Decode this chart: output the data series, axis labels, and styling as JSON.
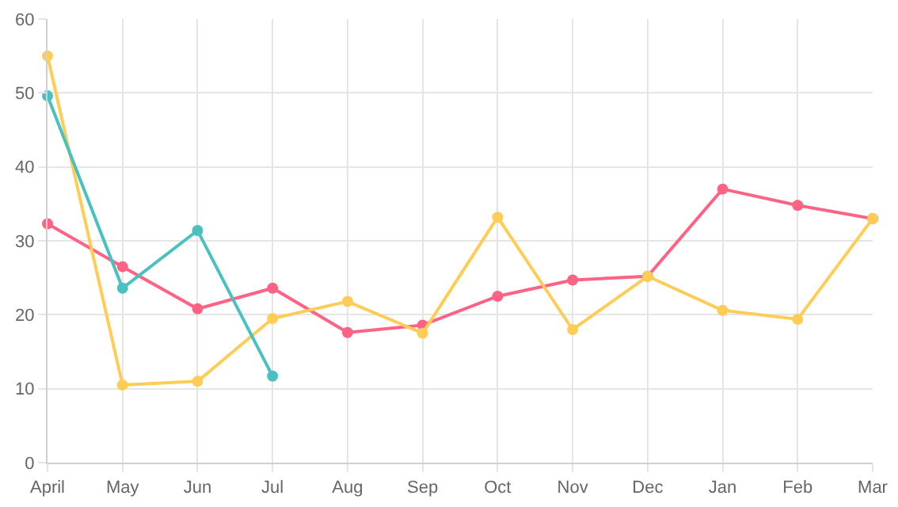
{
  "chart_data": {
    "type": "line",
    "categories": [
      "April",
      "May",
      "Jun",
      "Jul",
      "Aug",
      "Sep",
      "Oct",
      "Nov",
      "Dec",
      "Jan",
      "Feb",
      "Mar"
    ],
    "series": [
      {
        "color": "#ff6384",
        "values": [
          32.3,
          26.5,
          20.8,
          23.6,
          17.6,
          18.6,
          22.5,
          24.7,
          25.2,
          37,
          34.8,
          33
        ]
      },
      {
        "color": "#ffcd56",
        "values": [
          55,
          10.5,
          11,
          19.5,
          21.8,
          17.5,
          33.2,
          18,
          25.2,
          20.6,
          19.4,
          33
        ]
      },
      {
        "color": "#4bc0c0",
        "values": [
          49.6,
          23.6,
          31.4,
          11.7,
          null,
          null,
          null,
          null,
          null,
          null,
          null,
          null
        ]
      }
    ],
    "ylim": [
      0,
      60
    ],
    "yticks": [
      0,
      10,
      20,
      30,
      40,
      50,
      60
    ],
    "grid": true,
    "marker": "circle",
    "line_style": "solid"
  }
}
